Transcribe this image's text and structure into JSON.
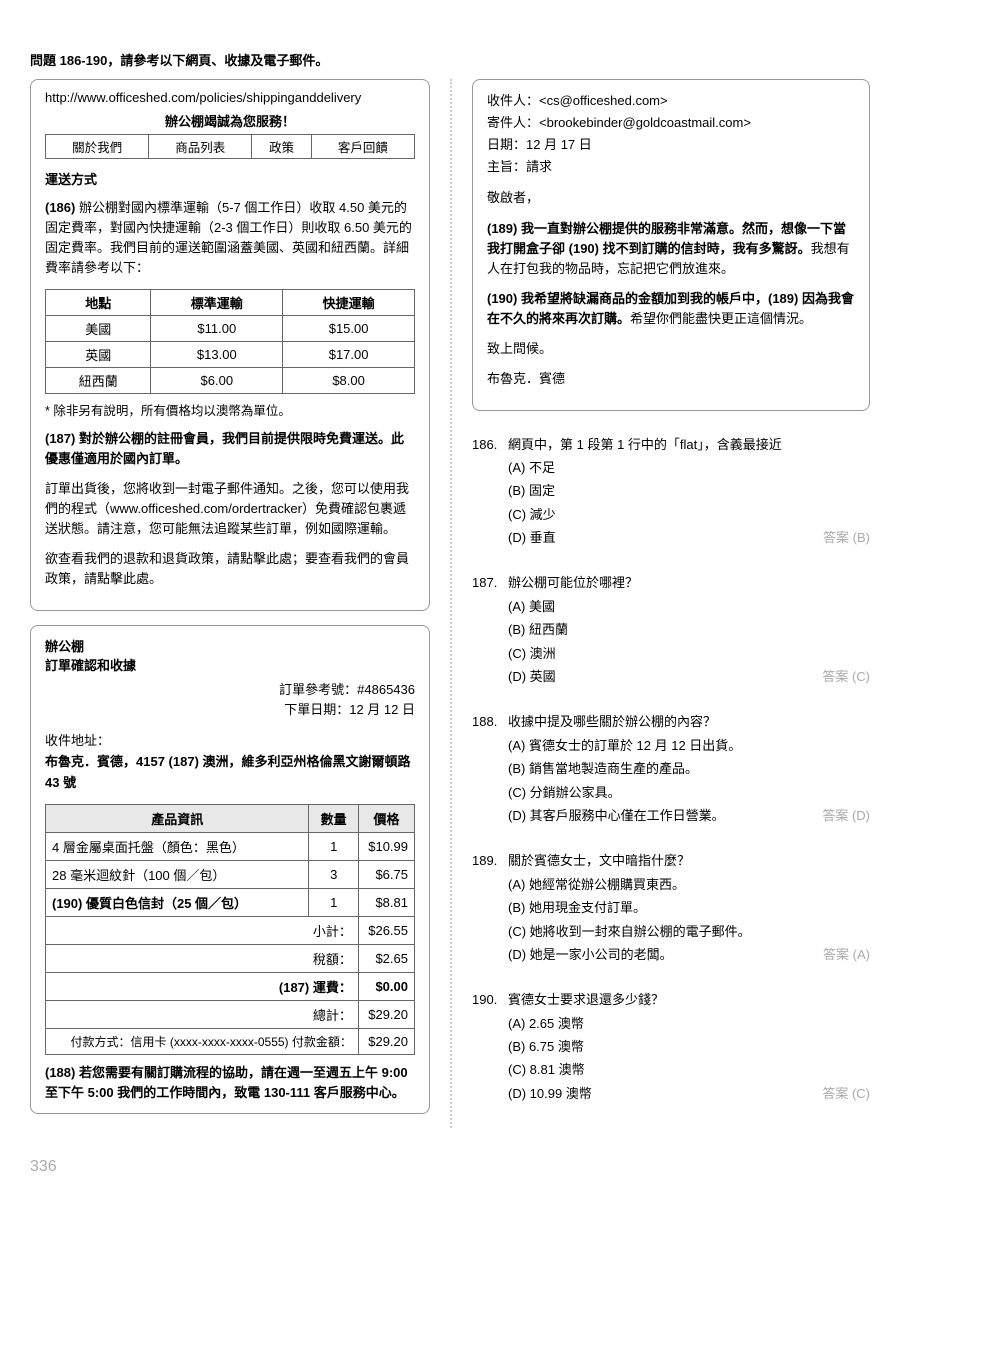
{
  "heading": "問題 186-190，請參考以下網頁、收據及電子郵件。",
  "webpage": {
    "url": "http://www.officeshed.com/policies/shippinganddelivery",
    "slogan": "辦公棚竭誠為您服務！",
    "nav": [
      "關於我們",
      "商品列表",
      "政策",
      "客戶回饋"
    ],
    "section_title": "運送方式",
    "p1_marker": "(186)",
    "p1": "辦公棚對國內標準運輸（5-7 個工作日）收取 4.50 美元的固定費率，對國內快捷運輸（2-3 個工作日）則收取 6.50 美元的固定費率。我們目前的運送範圍涵蓋美國、英國和紐西蘭。詳細費率請參考以下：",
    "ship_head": [
      "地點",
      "標準運輸",
      "快捷運輸"
    ],
    "ship_rows": [
      [
        "美國",
        "$11.00",
        "$15.00"
      ],
      [
        "英國",
        "$13.00",
        "$17.00"
      ],
      [
        "紐西蘭",
        "$6.00",
        "$8.00"
      ]
    ],
    "footnote": "* 除非另有說明，所有價格均以澳幣為單位。",
    "p2_marker": "(187)",
    "p2_bold": "對於辦公棚的註冊會員，我們目前提供限時免費運送。此優惠僅適用於國內訂單。",
    "p3": "訂單出貨後，您將收到一封電子郵件通知。之後，您可以使用我們的程式（www.officeshed.com/ordertracker）免費確認包裹遞送狀態。請注意，您可能無法追蹤某些訂單，例如國際運輸。",
    "p4": "欲查看我們的退款和退貨政策，請點擊此處；要查看我們的會員政策，請點擊此處。"
  },
  "receipt": {
    "title1": "辦公棚",
    "title2": "訂單確認和收據",
    "ref_label": "訂單參考號：",
    "ref_value": "#4865436",
    "date_label": "下單日期：",
    "date_value": "12 月 12 日",
    "addr_label": "收件地址：",
    "addr_marker": "(187)",
    "addr_line1_a": "布魯克．賓德，4157",
    "addr_line1_b": "澳洲，維多利亞州格倫黑文謝爾頓路 43 號",
    "head": [
      "產品資訊",
      "數量",
      "價格"
    ],
    "rows": [
      {
        "name": "4 層金屬桌面托盤（顏色：黑色）",
        "qty": "1",
        "price": "$10.99"
      },
      {
        "name": "28 毫米迴紋針（100 個／包）",
        "qty": "3",
        "price": "$6.75"
      },
      {
        "marker": "(190)",
        "name": "優質白色信封（25 個／包）",
        "qty": "1",
        "price": "$8.81"
      }
    ],
    "subtotal_label": "小計：",
    "subtotal": "$26.55",
    "tax_label": "稅額：",
    "tax": "$2.65",
    "ship_marker": "(187)",
    "ship_label": "運費：",
    "ship": "$0.00",
    "total_label": "總計：",
    "total": "$29.20",
    "pay_label": "付款方式：信用卡 (xxxx-xxxx-xxxx-0555) 付款金額：",
    "pay": "$29.20",
    "note_marker": "(188)",
    "note": "若您需要有關訂購流程的協助，請在週一至週五上午 9:00 至下午 5:00 我們的工作時間內，致電 130-111 客戶服務中心。"
  },
  "email": {
    "to_label": "收件人：",
    "to": "<cs@officeshed.com>",
    "from_label": "寄件人：",
    "from": "<brookebinder@goldcoastmail.com>",
    "date_label": "日期：",
    "date": "12 月 17 日",
    "subj_label": "主旨：",
    "subj": "請求",
    "greeting": "敬啟者，",
    "p1_m1": "(189)",
    "p1_t1": "我一直對辦公棚提供的服務非常滿意。然而，想像一下當我打開盒子卻",
    "p1_m2": "(190)",
    "p1_t2": "找不到訂購的信封時，我有多驚訝。",
    "p1_t3": "我想有人在打包我的物品時，忘記把它們放進來。",
    "p2_m1": "(190)",
    "p2_t1": "我希望將缺漏商品的金額加到我的帳戶中，",
    "p2_m2": "(189)",
    "p2_t2": "因為我會在不久的將來再次訂購。",
    "p2_t3": "希望你們能盡快更正這個情況。",
    "closing": "致上問候。",
    "signature": "布魯克．賓德"
  },
  "questions": [
    {
      "num": "186.",
      "stem": "網頁中，第 1 段第 1 行中的「flat」，含義最接近",
      "opts": [
        "(A) 不足",
        "(B) 固定",
        "(C) 減少",
        "(D) 垂直"
      ],
      "answer": "答案 (B)"
    },
    {
      "num": "187.",
      "stem": "辦公棚可能位於哪裡？",
      "opts": [
        "(A) 美國",
        "(B) 紐西蘭",
        "(C) 澳洲",
        "(D) 英國"
      ],
      "answer": "答案 (C)"
    },
    {
      "num": "188.",
      "stem": "收據中提及哪些關於辦公棚的內容？",
      "opts": [
        "(A) 賓德女士的訂單於 12 月 12 日出貨。",
        "(B) 銷售當地製造商生產的產品。",
        "(C) 分銷辦公家具。",
        "(D) 其客戶服務中心僅在工作日營業。"
      ],
      "answer": "答案 (D)"
    },
    {
      "num": "189.",
      "stem": "關於賓德女士，文中暗指什麼？",
      "opts": [
        "(A) 她經常從辦公棚購買東西。",
        "(B) 她用現金支付訂單。",
        "(C) 她將收到一封來自辦公棚的電子郵件。",
        "(D) 她是一家小公司的老闆。"
      ],
      "answer": "答案 (A)"
    },
    {
      "num": "190.",
      "stem": "賓德女士要求退還多少錢？",
      "opts": [
        "(A) 2.65 澳幣",
        "(B) 6.75 澳幣",
        "(C) 8.81 澳幣",
        "(D) 10.99 澳幣"
      ],
      "answer": "答案 (C)"
    }
  ],
  "page_number": "336"
}
